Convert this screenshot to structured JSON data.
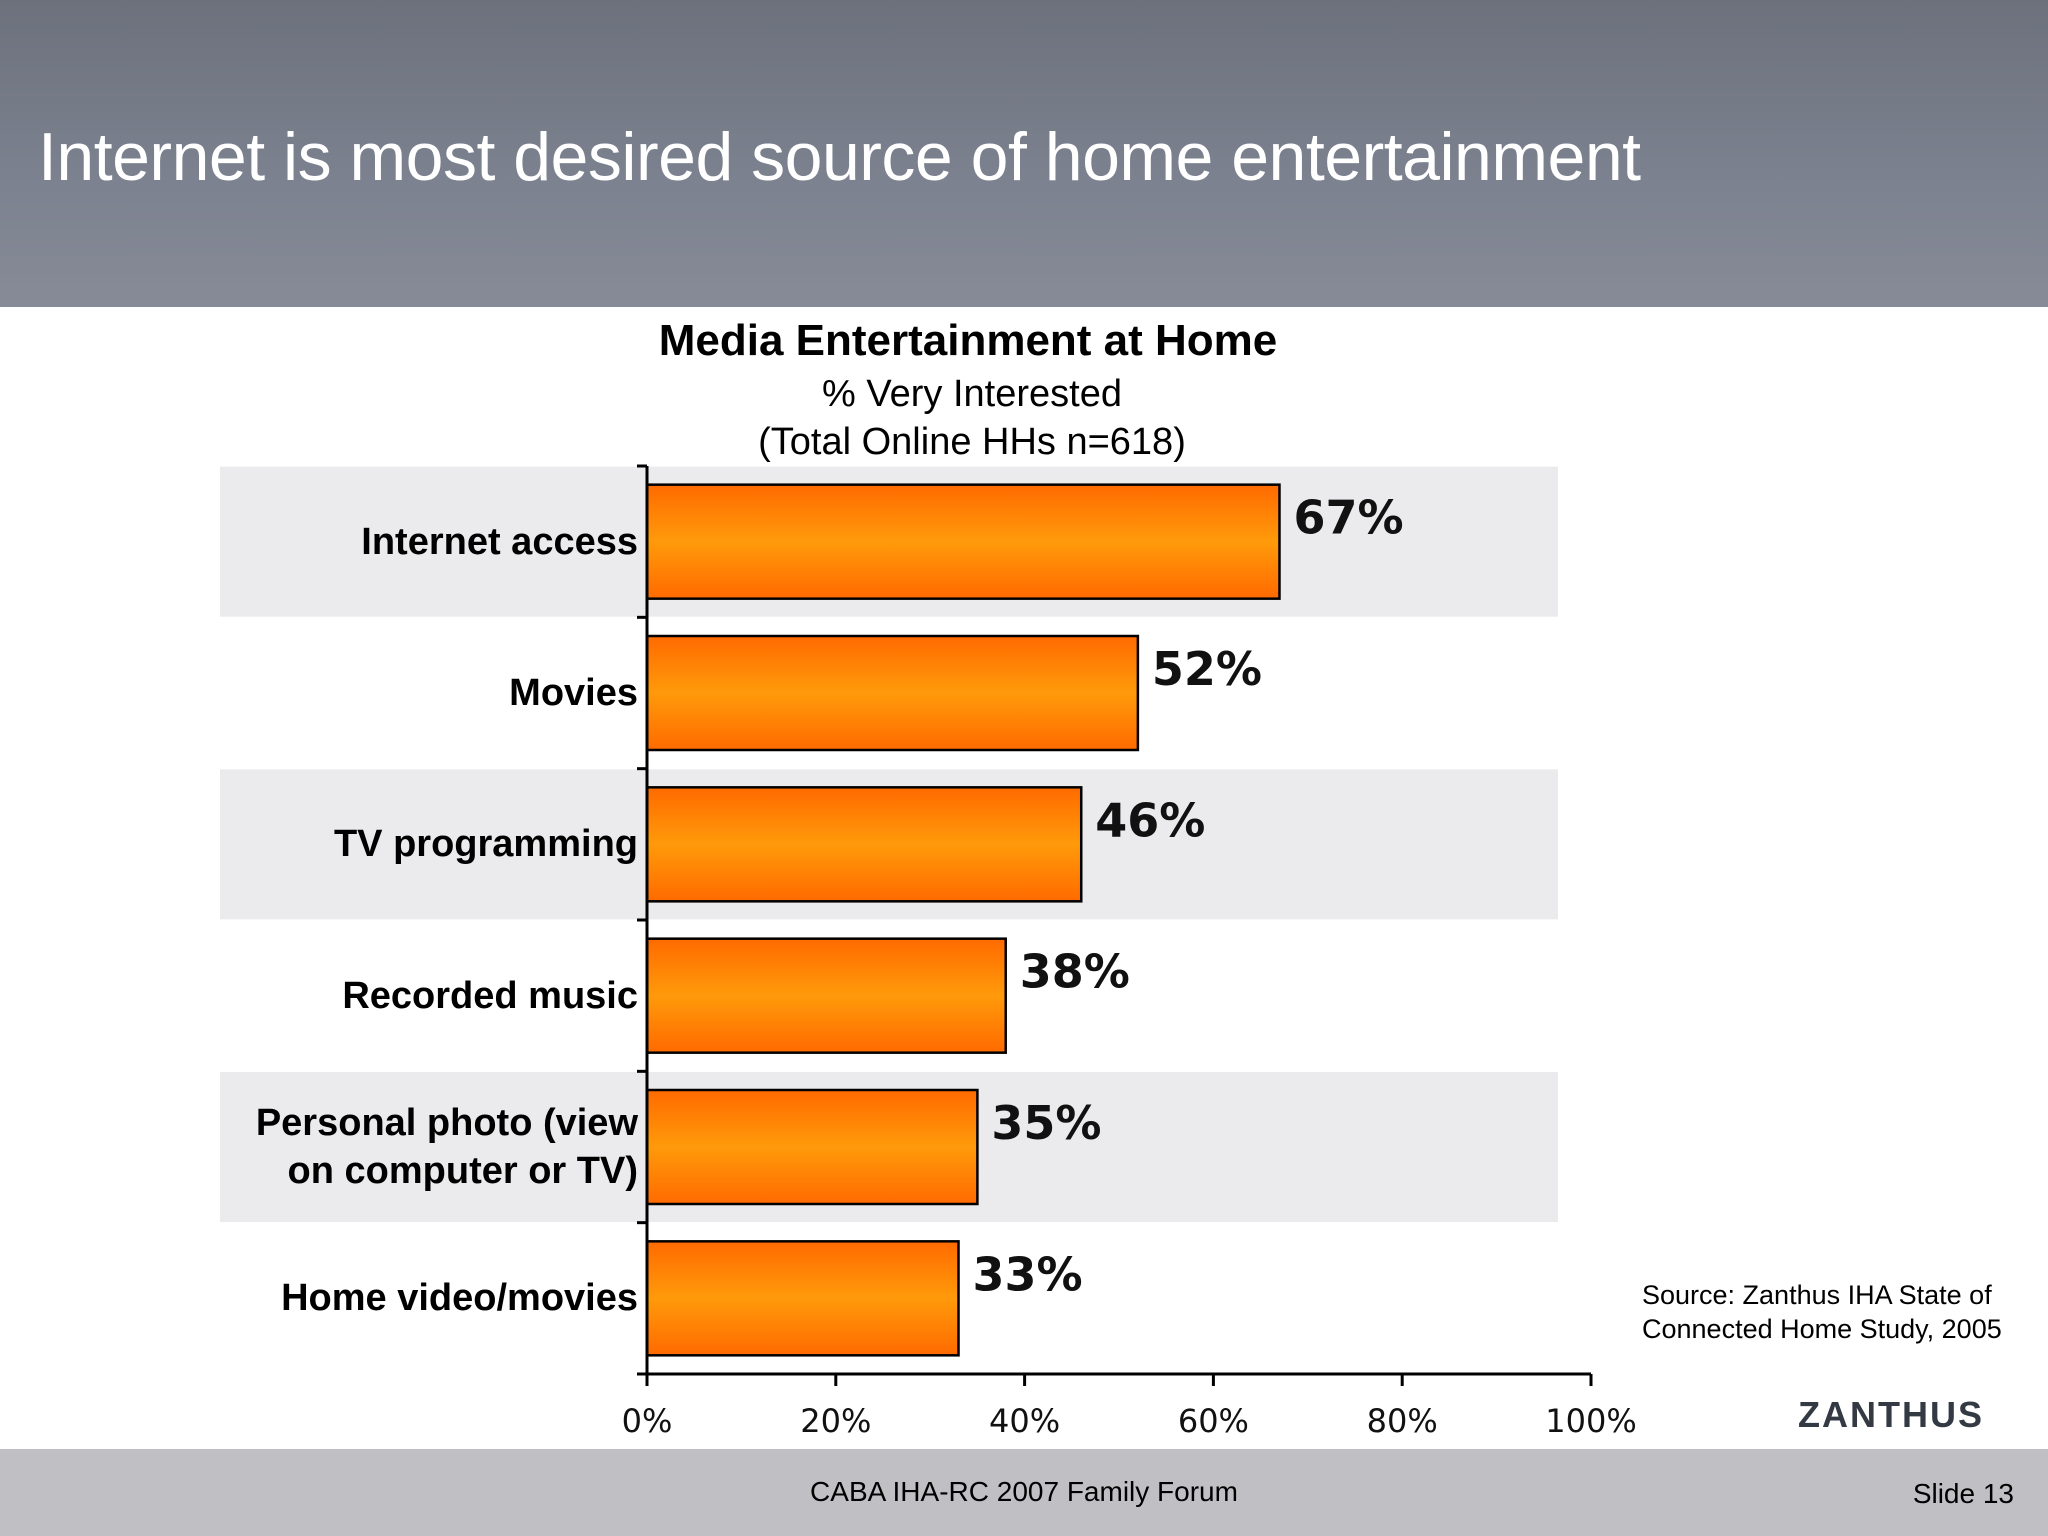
{
  "slide": {
    "title": "Internet is most desired source of home entertainment",
    "source_line1": "Source: Zanthus IHA State of",
    "source_line2": "Connected Home Study, 2005",
    "logo": "ZANTHUS",
    "footer_center": "CABA IHA-RC 2007 Family Forum",
    "footer_right": "Slide 13"
  },
  "colors": {
    "header": "#767b87",
    "band": "#ebeaec",
    "bar_edge": "#ff6a00",
    "bar_mid": "#ff9a0a",
    "bar_border": "#000000",
    "footer": "#c0bfc3"
  },
  "chart_data": {
    "type": "bar",
    "orientation": "horizontal",
    "title": "Media Entertainment at Home",
    "subtitle_line1": "% Very Interested",
    "subtitle_line2": "(Total Online HHs n=618)",
    "categories": [
      [
        "Internet access"
      ],
      [
        "Movies"
      ],
      [
        "TV programming"
      ],
      [
        "Recorded music"
      ],
      [
        "Personal photo (view",
        "on computer or TV)"
      ],
      [
        "Home video/movies"
      ]
    ],
    "values": [
      67,
      52,
      46,
      38,
      35,
      33
    ],
    "value_labels": [
      "67%",
      "52%",
      "46%",
      "38%",
      "35%",
      "33%"
    ],
    "xlim": [
      0,
      100
    ],
    "x_ticks": [
      0,
      20,
      40,
      60,
      80,
      100
    ],
    "x_tick_labels": [
      "0%",
      "20%",
      "40%",
      "60%",
      "80%",
      "100%"
    ],
    "banded_rows": [
      0,
      2,
      4
    ],
    "grid": false,
    "legend": "none"
  }
}
